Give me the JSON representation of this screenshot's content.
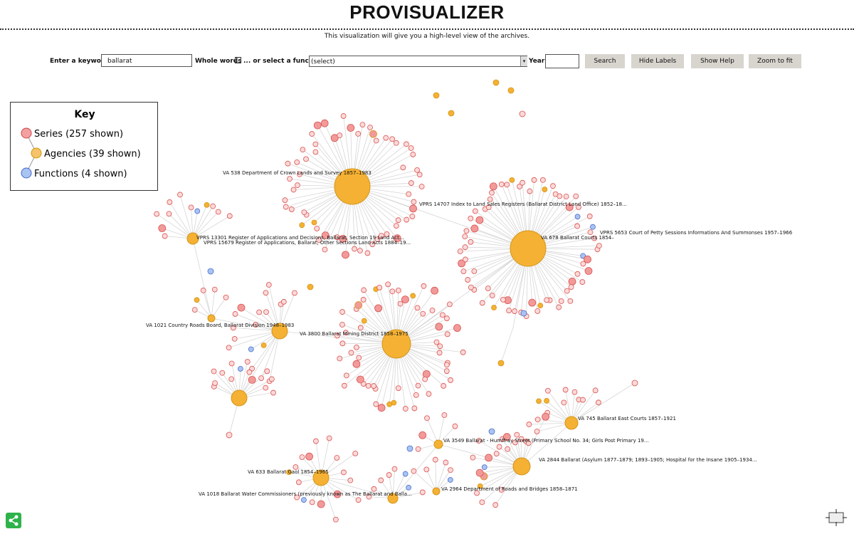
{
  "header": {
    "title": "PROVISUALIZER",
    "subtitle": "This visualization will give you a high-level view of the archives."
  },
  "form": {
    "keyword_label": "Enter a keyword:",
    "keyword_value": "ballarat",
    "whole_words_label": "Whole words",
    "function_label": "... or select a function:",
    "function_value": "(select)",
    "year_label": "Year:",
    "buttons": [
      "Search",
      "Hide Labels",
      "Show Help",
      "Zoom to fit"
    ]
  },
  "key": {
    "title": "Key",
    "items": [
      "Series (257 shown)",
      "Agencies (39 shown)",
      "Functions (4 shown)"
    ]
  },
  "graph": {
    "labels": [
      "VA 538 Department of Crown Lands and Survey 1857–1983",
      "VPRS 14707 Index to Land Sales Registers (Ballarat District Land Office) 1852–18...",
      "VPRS 5653 Court of Petty Sessions Informations And Summonses 1957–1966",
      "VA 678 Ballarat Courts 1854–",
      "VPRS 13301 Register of Applications and Decisions, Ballarat, Section 19 Land Act...",
      "VPRS 15679 Register of Applications, Ballarat, Other Sections Land Acts 1884–19...",
      "VA 1021 Country Roads Board, Ballarat Division 1948–1983",
      "VA 3800 Ballarat Mining District 1858–1975",
      "VA 745 Ballarat East Courts 1857–1921",
      "VA 3549 Ballarat - Humffray Street (Primary School No. 34; Girls Post Primary 19...",
      "VA 2844 Ballarat (Asylum 1877–1879; 1893–1905; Hospital for the Insane 1905–1934...",
      "VA 633 Ballarat Gaol 1854–1965",
      "VA 2964 Department of Roads and Bridges 1858–1871",
      "VA 1018 Ballarat Water Commissioners (previously known as The Ballarat and Balla..."
    ]
  }
}
